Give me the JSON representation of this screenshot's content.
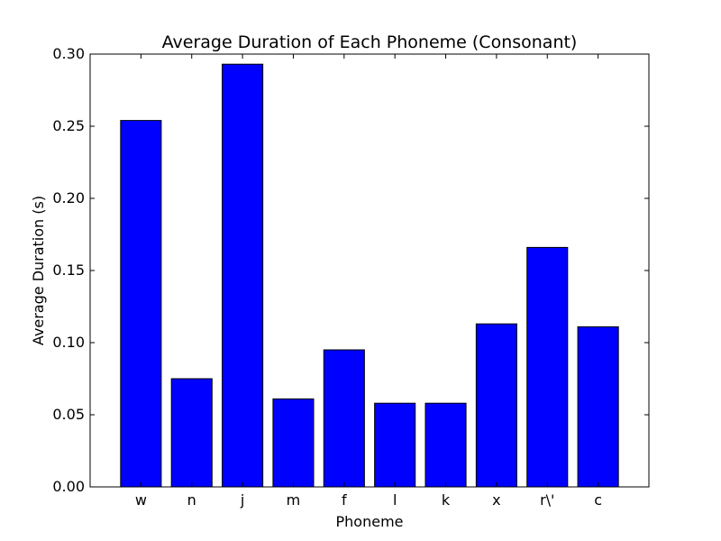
{
  "chart_data": {
    "type": "bar",
    "title": "Average Duration of Each Phoneme (Consonant)",
    "xlabel": "Phoneme",
    "ylabel": "Average Duration (s)",
    "categories": [
      "w",
      "n",
      "j",
      "m",
      "f",
      "l",
      "k",
      "x",
      "r\\'",
      "c"
    ],
    "values": [
      0.254,
      0.075,
      0.293,
      0.061,
      0.095,
      0.058,
      0.058,
      0.113,
      0.166,
      0.111
    ],
    "ylim": [
      0,
      0.3
    ],
    "yticks": [
      "0.00",
      "0.05",
      "0.10",
      "0.15",
      "0.20",
      "0.25",
      "0.30"
    ],
    "bar_color": "#0000ff",
    "edge_color": "#000000",
    "grid": false
  }
}
